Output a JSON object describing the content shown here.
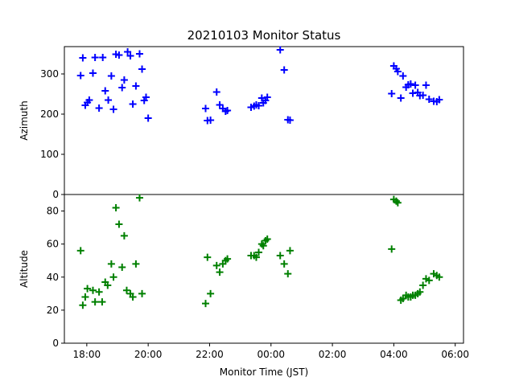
{
  "chart_data": {
    "type": "scatter",
    "title": "20210103 Monitor Status",
    "xlabel": "Monitor Time (JST)",
    "x_unit": "hours",
    "xlim": [
      17.27,
      30.27
    ],
    "x_ticks": [
      {
        "value": 18,
        "label": "18:00"
      },
      {
        "value": 20,
        "label": "20:00"
      },
      {
        "value": 22,
        "label": "22:00"
      },
      {
        "value": 24,
        "label": "00:00"
      },
      {
        "value": 26,
        "label": "02:00"
      },
      {
        "value": 28,
        "label": "04:00"
      },
      {
        "value": 30,
        "label": "06:00"
      }
    ],
    "marker": "+",
    "panels": [
      {
        "name": "azimuth",
        "ylabel": "Azimuth",
        "ylim": [
          0,
          368
        ],
        "y_ticks": [
          0,
          100,
          200,
          300
        ],
        "color": "#0000ff",
        "points": [
          [
            17.8,
            296
          ],
          [
            17.87,
            340
          ],
          [
            17.95,
            222
          ],
          [
            18.02,
            229
          ],
          [
            18.08,
            235
          ],
          [
            18.2,
            302
          ],
          [
            18.27,
            341
          ],
          [
            18.4,
            215
          ],
          [
            18.52,
            341
          ],
          [
            18.6,
            258
          ],
          [
            18.7,
            235
          ],
          [
            18.8,
            295
          ],
          [
            18.87,
            212
          ],
          [
            18.95,
            349
          ],
          [
            19.05,
            347
          ],
          [
            19.15,
            266
          ],
          [
            19.22,
            285
          ],
          [
            19.33,
            355
          ],
          [
            19.42,
            345
          ],
          [
            19.5,
            225
          ],
          [
            19.6,
            270
          ],
          [
            19.72,
            350
          ],
          [
            19.8,
            312
          ],
          [
            19.87,
            234
          ],
          [
            19.93,
            242
          ],
          [
            20.0,
            190
          ],
          [
            21.87,
            214
          ],
          [
            21.93,
            184
          ],
          [
            22.03,
            185
          ],
          [
            22.23,
            255
          ],
          [
            22.33,
            223
          ],
          [
            22.43,
            214
          ],
          [
            22.52,
            207
          ],
          [
            22.58,
            209
          ],
          [
            23.35,
            217
          ],
          [
            23.45,
            220
          ],
          [
            23.52,
            223
          ],
          [
            23.6,
            221
          ],
          [
            23.7,
            240
          ],
          [
            23.75,
            228
          ],
          [
            23.82,
            234
          ],
          [
            23.88,
            242
          ],
          [
            24.3,
            360
          ],
          [
            24.43,
            310
          ],
          [
            24.55,
            186
          ],
          [
            24.62,
            185
          ],
          [
            27.93,
            251
          ],
          [
            28.0,
            320
          ],
          [
            28.08,
            313
          ],
          [
            28.13,
            306
          ],
          [
            28.23,
            240
          ],
          [
            28.3,
            295
          ],
          [
            28.4,
            267
          ],
          [
            28.47,
            273
          ],
          [
            28.55,
            275
          ],
          [
            28.62,
            252
          ],
          [
            28.7,
            272
          ],
          [
            28.78,
            254
          ],
          [
            28.85,
            246
          ],
          [
            28.95,
            247
          ],
          [
            29.05,
            272
          ],
          [
            29.15,
            237
          ],
          [
            29.3,
            232
          ],
          [
            29.4,
            231
          ],
          [
            29.48,
            236
          ]
        ]
      },
      {
        "name": "altitude",
        "ylabel": "Altitude",
        "ylim": [
          0,
          90
        ],
        "y_ticks": [
          0,
          20,
          40,
          60,
          80
        ],
        "color": "#008000",
        "points": [
          [
            17.8,
            56
          ],
          [
            17.87,
            23
          ],
          [
            17.95,
            28
          ],
          [
            18.02,
            33
          ],
          [
            18.2,
            32
          ],
          [
            18.27,
            25
          ],
          [
            18.4,
            31
          ],
          [
            18.5,
            25
          ],
          [
            18.6,
            37
          ],
          [
            18.68,
            35
          ],
          [
            18.8,
            48
          ],
          [
            18.87,
            40
          ],
          [
            18.95,
            82
          ],
          [
            19.05,
            72
          ],
          [
            19.15,
            46
          ],
          [
            19.22,
            65
          ],
          [
            19.3,
            32
          ],
          [
            19.42,
            30
          ],
          [
            19.5,
            28
          ],
          [
            19.6,
            48
          ],
          [
            19.72,
            88
          ],
          [
            19.8,
            30
          ],
          [
            21.87,
            24
          ],
          [
            21.93,
            52
          ],
          [
            22.03,
            30
          ],
          [
            22.23,
            47
          ],
          [
            22.33,
            43
          ],
          [
            22.43,
            48
          ],
          [
            22.52,
            50
          ],
          [
            22.58,
            51
          ],
          [
            23.35,
            53
          ],
          [
            23.45,
            53
          ],
          [
            23.52,
            52
          ],
          [
            23.6,
            55
          ],
          [
            23.7,
            60
          ],
          [
            23.75,
            59
          ],
          [
            23.82,
            62
          ],
          [
            23.88,
            63
          ],
          [
            24.3,
            53
          ],
          [
            24.43,
            48
          ],
          [
            24.55,
            42
          ],
          [
            24.62,
            56
          ],
          [
            27.93,
            57
          ],
          [
            28.0,
            87
          ],
          [
            28.08,
            86
          ],
          [
            28.13,
            85
          ],
          [
            28.23,
            26
          ],
          [
            28.3,
            27
          ],
          [
            28.4,
            29
          ],
          [
            28.47,
            28
          ],
          [
            28.55,
            28
          ],
          [
            28.62,
            29
          ],
          [
            28.7,
            29
          ],
          [
            28.78,
            30
          ],
          [
            28.85,
            31
          ],
          [
            28.95,
            35
          ],
          [
            29.05,
            39
          ],
          [
            29.15,
            38
          ],
          [
            29.3,
            42
          ],
          [
            29.4,
            41
          ],
          [
            29.48,
            40
          ]
        ]
      }
    ]
  }
}
